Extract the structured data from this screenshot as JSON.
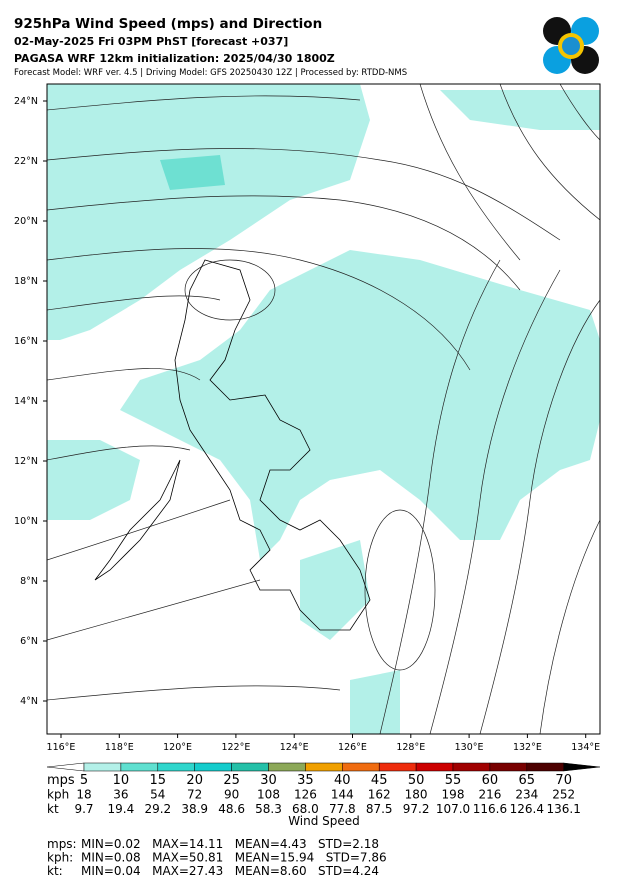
{
  "header": {
    "title": "925hPa Wind Speed (mps) and Direction",
    "date": "02-May-2025 Fri 03PM PhST [forecast +037]",
    "init": "PAGASA WRF 12km initialization: 2025/04/30 1800Z",
    "model": "Forecast Model: WRF ver. 4.5 | Driving Model: GFS 20250430 12Z | Processed by: RTDD-NMS"
  },
  "map": {
    "lat_labels": [
      "24°N",
      "22°N",
      "20°N",
      "18°N",
      "16°N",
      "14°N",
      "12°N",
      "10°N",
      "8°N",
      "6°N",
      "4°N"
    ],
    "lon_labels": [
      "116°E",
      "118°E",
      "120°E",
      "122°E",
      "124°E",
      "126°E",
      "128°E",
      "130°E",
      "132°E",
      "134°E"
    ]
  },
  "colorbar": {
    "colors": [
      "#ffffff",
      "#b3f0e8",
      "#5fe0d0",
      "#2fd6cc",
      "#14cccc",
      "#24c0a8",
      "#8ca858",
      "#f0a000",
      "#f06c10",
      "#ee2c0c",
      "#cc0000",
      "#a00000",
      "#780000",
      "#4c0000",
      "#000000"
    ],
    "units": [
      "mps",
      "kph",
      "kt"
    ],
    "rows": [
      [
        "5",
        "10",
        "15",
        "20",
        "25",
        "30",
        "35",
        "40",
        "45",
        "50",
        "55",
        "60",
        "65",
        "70"
      ],
      [
        "18",
        "36",
        "54",
        "72",
        "90",
        "108",
        "126",
        "144",
        "162",
        "180",
        "198",
        "216",
        "234",
        "252"
      ],
      [
        "9.7",
        "19.4",
        "29.2",
        "38.9",
        "48.6",
        "58.3",
        "68.0",
        "77.8",
        "87.5",
        "97.2",
        "107.0",
        "116.6",
        "126.4",
        "136.1"
      ]
    ],
    "label": "Wind Speed"
  },
  "stats": [
    {
      "unit": "mps:",
      "text": "MIN=0.02   MAX=14.11   MEAN=4.43   STD=2.18"
    },
    {
      "unit": "kph:",
      "text": "MIN=0.08   MAX=50.81   MEAN=15.94   STD=7.86"
    },
    {
      "unit": "kt:",
      "text": "MIN=0.04   MAX=27.43   MEAN=8.60   STD=4.24"
    }
  ]
}
